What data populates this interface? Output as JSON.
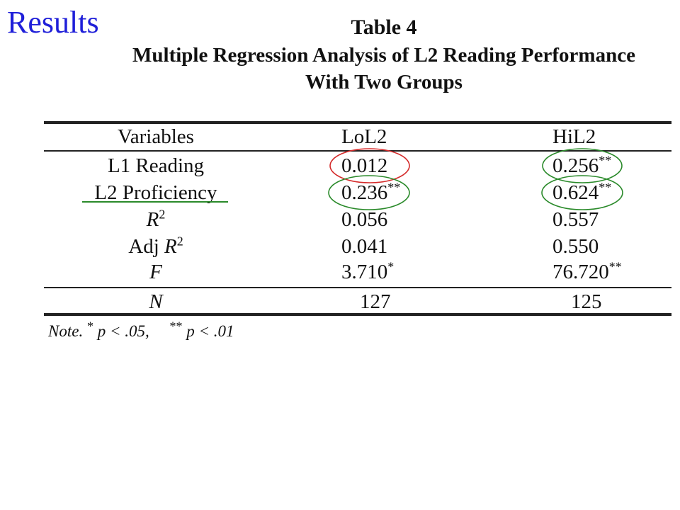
{
  "slide": {
    "heading": "Results"
  },
  "table": {
    "number": "Table 4",
    "title": "Multiple Regression Analysis of L2 Reading Performance",
    "title_line2": "With Two Groups",
    "columns": [
      "Variables",
      "LoL2",
      "HiL2"
    ],
    "rows": [
      {
        "label": "L1 Reading",
        "lol2": "0.012",
        "lol2_sig": "",
        "hil2": "0.256",
        "hil2_sig": "**"
      },
      {
        "label": "L2 Proficiency",
        "lol2": "0.236",
        "lol2_sig": "**",
        "hil2": "0.624",
        "hil2_sig": "**"
      },
      {
        "label_base": "R",
        "label_sup": "2",
        "lol2": "0.056",
        "hil2": "0.557"
      },
      {
        "label_prefix": "Adj ",
        "label_base": "R",
        "label_sup": "2",
        "lol2": "0.041",
        "hil2": "0.550"
      },
      {
        "label": "F",
        "lol2": "3.710",
        "lol2_sig": "*",
        "hil2": "76.720",
        "hil2_sig": "**"
      },
      {
        "label": "N",
        "lol2": "127",
        "hil2": "125"
      }
    ],
    "note": {
      "lead": "Note.",
      "sig1_mark": "*",
      "sig1_text": "p < .05,",
      "sig2_mark": "**",
      "sig2_text": "p < .01"
    }
  },
  "annotations": {
    "red": "#d42a2a",
    "green": "#2a8a2a"
  }
}
